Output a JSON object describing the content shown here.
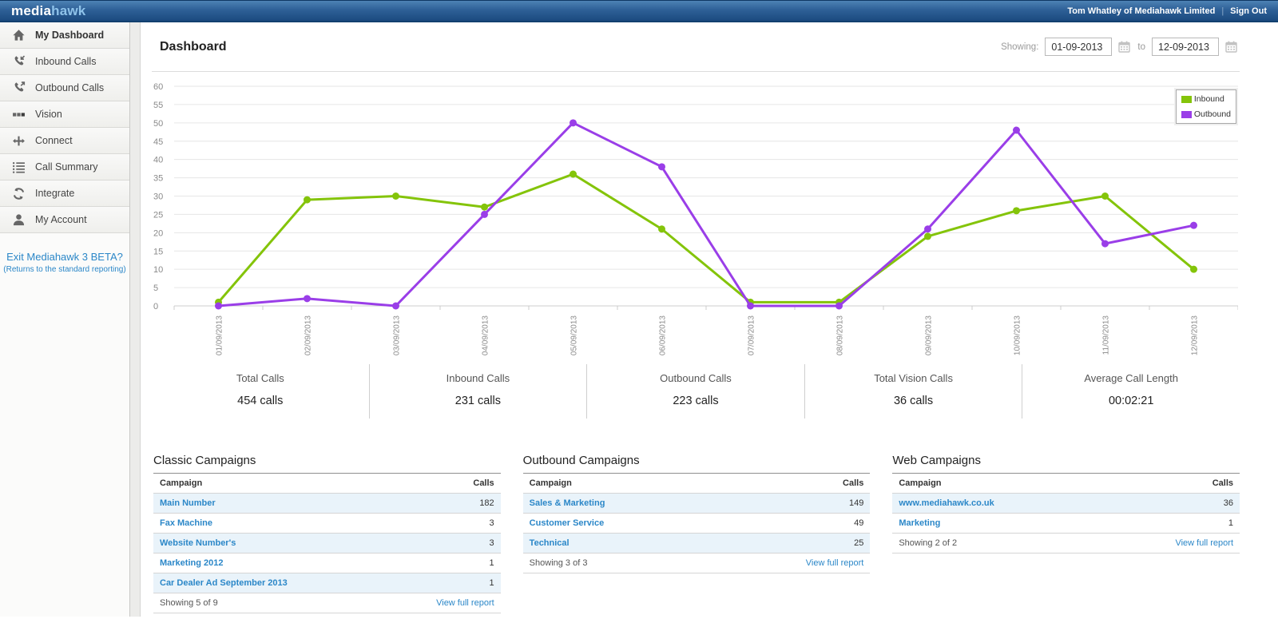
{
  "topbar": {
    "logo_media": "media",
    "logo_hawk": "hawk",
    "user": "Tom Whatley of Mediahawk Limited",
    "sign_out": "Sign Out"
  },
  "sidebar": {
    "items": [
      {
        "label": "My Dashboard",
        "icon": "home-icon",
        "active": true
      },
      {
        "label": "Inbound Calls",
        "icon": "inbound-phone-icon",
        "active": false
      },
      {
        "label": "Outbound Calls",
        "icon": "outbound-phone-icon",
        "active": false
      },
      {
        "label": "Vision",
        "icon": "vision-icon",
        "active": false
      },
      {
        "label": "Connect",
        "icon": "connect-icon",
        "active": false
      },
      {
        "label": "Call Summary",
        "icon": "call-summary-icon",
        "active": false
      },
      {
        "label": "Integrate",
        "icon": "integrate-icon",
        "active": false
      },
      {
        "label": "My Account",
        "icon": "my-account-icon",
        "active": false
      }
    ],
    "beta_link": "Exit Mediahawk 3 BETA?",
    "beta_note": "(Returns to the standard reporting)"
  },
  "header": {
    "title": "Dashboard",
    "showing_label": "Showing:",
    "date_from": "01-09-2013",
    "to_label": "to",
    "date_to": "12-09-2013"
  },
  "chart_data": {
    "type": "line",
    "x": [
      "01/09/2013",
      "02/09/2013",
      "03/09/2013",
      "04/09/2013",
      "05/09/2013",
      "06/09/2013",
      "07/09/2013",
      "08/09/2013",
      "09/09/2013",
      "10/09/2013",
      "11/09/2013",
      "12/09/2013"
    ],
    "series": [
      {
        "name": "Inbound",
        "color": "#84c40a",
        "values": [
          1,
          29,
          30,
          27,
          36,
          21,
          1,
          1,
          19,
          26,
          30,
          10
        ]
      },
      {
        "name": "Outbound",
        "color": "#9a3ee8",
        "values": [
          0,
          2,
          0,
          25,
          50,
          38,
          0,
          0,
          21,
          48,
          17,
          22
        ]
      }
    ],
    "title": "",
    "xlabel": "",
    "ylabel": "",
    "ylim": [
      0,
      60
    ],
    "ytick": 5,
    "grid": true,
    "legend_position": "top-right"
  },
  "stats": [
    {
      "label": "Total Calls",
      "value": "454 calls"
    },
    {
      "label": "Inbound Calls",
      "value": "231 calls"
    },
    {
      "label": "Outbound Calls",
      "value": "223 calls"
    },
    {
      "label": "Total Vision Calls",
      "value": "36 calls"
    },
    {
      "label": "Average Call Length",
      "value": "00:02:21"
    }
  ],
  "tables": [
    {
      "title": "Classic Campaigns",
      "columns": [
        "Campaign",
        "Calls"
      ],
      "rows": [
        {
          "campaign": "Main Number",
          "calls": "182"
        },
        {
          "campaign": "Fax Machine",
          "calls": "3"
        },
        {
          "campaign": "Website Number's",
          "calls": "3"
        },
        {
          "campaign": "Marketing 2012",
          "calls": "1"
        },
        {
          "campaign": "Car Dealer Ad September 2013",
          "calls": "1"
        }
      ],
      "footer": "Showing 5 of 9",
      "link": "View full report"
    },
    {
      "title": "Outbound Campaigns",
      "columns": [
        "Campaign",
        "Calls"
      ],
      "rows": [
        {
          "campaign": "Sales & Marketing",
          "calls": "149"
        },
        {
          "campaign": "Customer Service",
          "calls": "49"
        },
        {
          "campaign": "Technical",
          "calls": "25"
        }
      ],
      "footer": "Showing 3 of 3",
      "link": "View full report"
    },
    {
      "title": "Web Campaigns",
      "columns": [
        "Campaign",
        "Calls"
      ],
      "rows": [
        {
          "campaign": "www.mediahawk.co.uk",
          "calls": "36"
        },
        {
          "campaign": "Marketing",
          "calls": "1"
        }
      ],
      "footer": "Showing 2 of 2",
      "link": "View full report"
    }
  ],
  "colors": {
    "inbound": "#84c40a",
    "outbound": "#9a3ee8",
    "link_blue": "#2b87c8",
    "topbar_blue": "#1b4a7f"
  }
}
